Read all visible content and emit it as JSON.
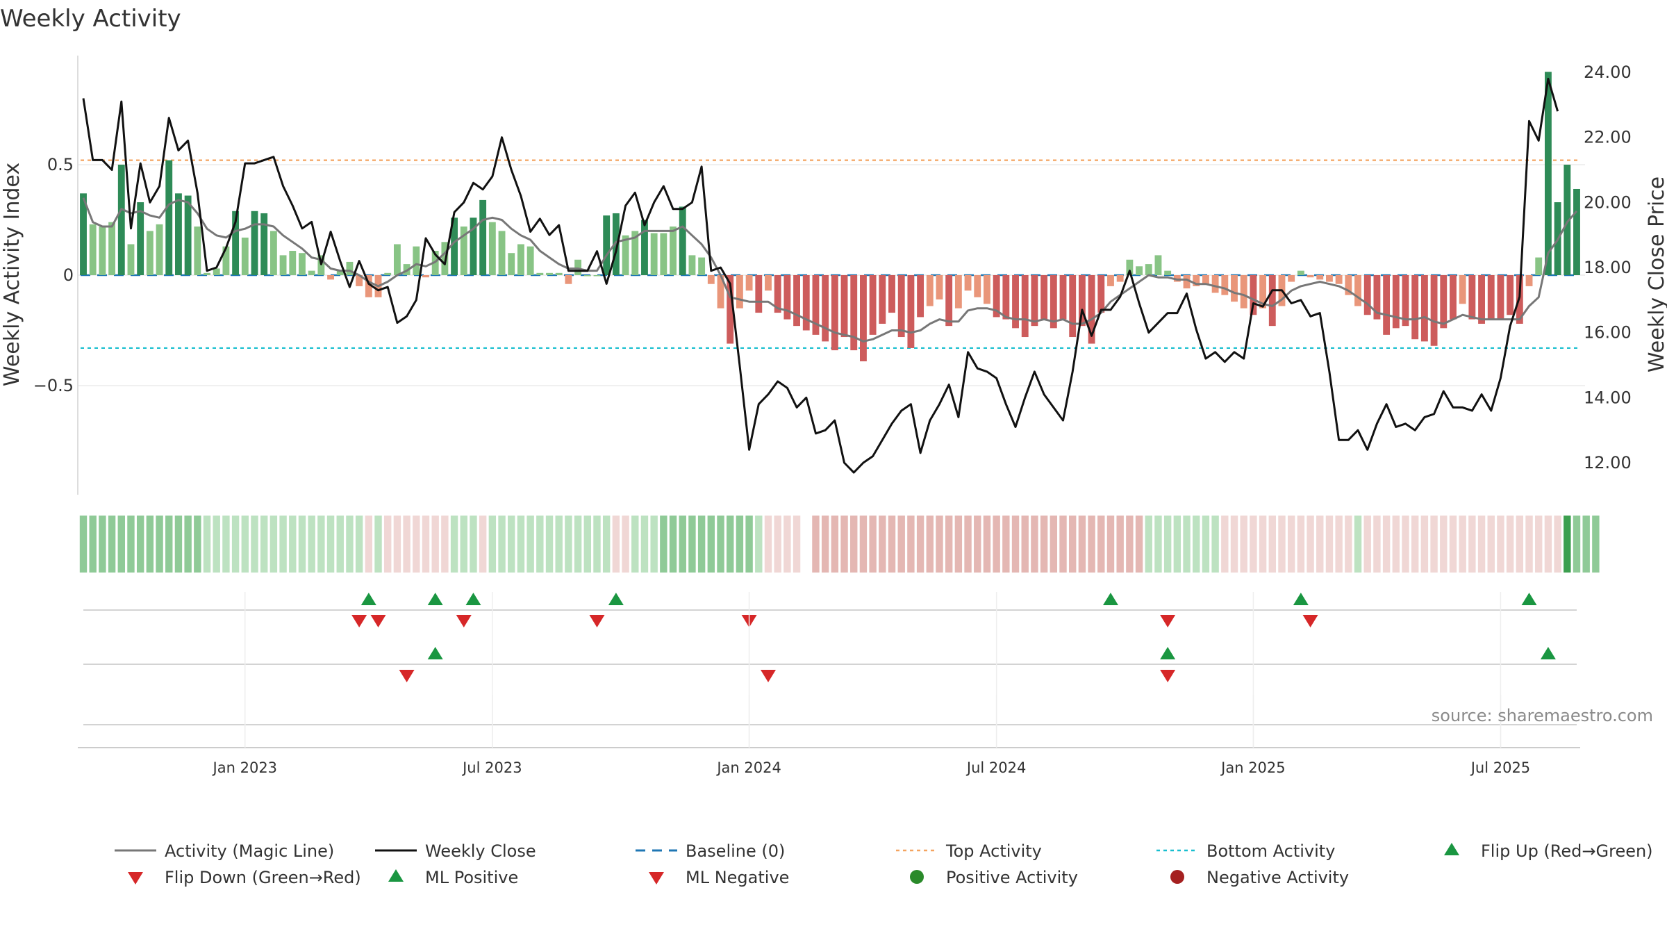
{
  "title": "Weekly Activity",
  "source": "source: sharemaestro.com",
  "colors": {
    "pos_strong": "#2e8b57",
    "pos_light": "#88c485",
    "neg_strong": "#cd5c5c",
    "neg_light": "#e9967a",
    "close_line": "#111111",
    "magic_line": "#777777",
    "baseline": "#1f77b4",
    "top_line": "#f4a460",
    "bottom_line": "#17becf",
    "flip_up": "#1a9641",
    "flip_down": "#d62728"
  },
  "chart_data": {
    "type": "bar",
    "title": "Weekly Activity",
    "ylabel_left": "Weekly Activity Index",
    "ylabel_right": "Weekly Close Price",
    "yticks_left": [
      "0.5",
      "0",
      "−0.5"
    ],
    "yticks_left_values": [
      0.5,
      0,
      -0.5
    ],
    "yticks_right": [
      "24.00",
      "22.00",
      "20.00",
      "18.00",
      "16.00",
      "14.00",
      "12.00"
    ],
    "yticks_right_values": [
      24,
      22,
      20,
      18,
      16,
      14,
      12
    ],
    "ylim_left": [
      -1.0,
      1.0
    ],
    "ylim_right": [
      10.6,
      24.2
    ],
    "x_labels": [
      "Jan 2023",
      "Jul 2023",
      "Jan 2024",
      "Jul 2024",
      "Jan 2025",
      "Jul 2025"
    ],
    "x_label_weeks": [
      17,
      43,
      70,
      96,
      123,
      149
    ],
    "top_activity": 0.52,
    "bottom_activity": -0.33,
    "activity": [
      0.37,
      0.23,
      0.22,
      0.24,
      0.5,
      0.14,
      0.33,
      0.2,
      0.23,
      0.52,
      0.37,
      0.36,
      0.22,
      0.01,
      0.03,
      0.13,
      0.29,
      0.17,
      0.29,
      0.28,
      0.2,
      0.09,
      0.11,
      0.1,
      0.02,
      0.09,
      -0.02,
      0.02,
      0.06,
      -0.05,
      -0.1,
      -0.1,
      0.01,
      0.14,
      0.05,
      0.13,
      -0.01,
      0.11,
      0.15,
      0.26,
      0.22,
      0.26,
      0.34,
      0.24,
      0.2,
      0.1,
      0.14,
      0.13,
      0.01,
      0.01,
      0.01,
      -0.04,
      0.07,
      0.0,
      0.0,
      0.27,
      0.28,
      0.18,
      0.2,
      0.25,
      0.19,
      0.19,
      0.22,
      0.31,
      0.09,
      0.08,
      -0.04,
      -0.15,
      -0.31,
      -0.15,
      -0.07,
      -0.17,
      -0.07,
      -0.17,
      -0.2,
      -0.23,
      -0.25,
      -0.27,
      -0.3,
      -0.34,
      -0.28,
      -0.34,
      -0.39,
      -0.27,
      -0.22,
      -0.17,
      -0.28,
      -0.33,
      -0.19,
      -0.14,
      -0.11,
      -0.23,
      -0.15,
      -0.07,
      -0.1,
      -0.13,
      -0.19,
      -0.2,
      -0.24,
      -0.28,
      -0.23,
      -0.2,
      -0.24,
      -0.2,
      -0.28,
      -0.23,
      -0.31,
      -0.17,
      -0.05,
      -0.03,
      0.07,
      0.04,
      0.05,
      0.09,
      0.02,
      -0.03,
      -0.06,
      -0.05,
      -0.04,
      -0.08,
      -0.09,
      -0.12,
      -0.15,
      -0.18,
      -0.15,
      -0.23,
      -0.14,
      -0.03,
      0.02,
      -0.01,
      -0.02,
      -0.03,
      -0.04,
      -0.09,
      -0.14,
      -0.18,
      -0.2,
      -0.27,
      -0.24,
      -0.23,
      -0.29,
      -0.3,
      -0.32,
      -0.24,
      -0.2,
      -0.13,
      -0.2,
      -0.22,
      -0.2,
      -0.2,
      -0.18,
      -0.22,
      -0.05,
      0.08,
      0.92,
      0.33,
      0.5,
      0.39
    ],
    "magic_line": [
      0.35,
      0.24,
      0.22,
      0.22,
      0.3,
      0.28,
      0.29,
      0.27,
      0.26,
      0.32,
      0.34,
      0.33,
      0.28,
      0.21,
      0.18,
      0.17,
      0.2,
      0.21,
      0.23,
      0.23,
      0.22,
      0.18,
      0.15,
      0.12,
      0.08,
      0.07,
      0.03,
      0.02,
      0.02,
      0.0,
      -0.03,
      -0.05,
      -0.03,
      0.0,
      0.02,
      0.05,
      0.04,
      0.06,
      0.1,
      0.15,
      0.18,
      0.21,
      0.25,
      0.26,
      0.25,
      0.21,
      0.18,
      0.16,
      0.11,
      0.08,
      0.05,
      0.03,
      0.03,
      0.02,
      0.02,
      0.09,
      0.15,
      0.16,
      0.17,
      0.2,
      0.2,
      0.2,
      0.2,
      0.22,
      0.18,
      0.14,
      0.08,
      0.0,
      -0.1,
      -0.11,
      -0.12,
      -0.12,
      -0.12,
      -0.15,
      -0.16,
      -0.18,
      -0.2,
      -0.22,
      -0.24,
      -0.26,
      -0.27,
      -0.28,
      -0.3,
      -0.29,
      -0.27,
      -0.25,
      -0.25,
      -0.26,
      -0.25,
      -0.22,
      -0.2,
      -0.21,
      -0.21,
      -0.16,
      -0.15,
      -0.15,
      -0.16,
      -0.19,
      -0.2,
      -0.2,
      -0.21,
      -0.2,
      -0.21,
      -0.2,
      -0.22,
      -0.22,
      -0.2,
      -0.17,
      -0.12,
      -0.09,
      -0.06,
      -0.03,
      0.0,
      -0.01,
      -0.01,
      -0.02,
      -0.02,
      -0.04,
      -0.04,
      -0.05,
      -0.06,
      -0.08,
      -0.09,
      -0.11,
      -0.13,
      -0.14,
      -0.11,
      -0.07,
      -0.05,
      -0.04,
      -0.03,
      -0.04,
      -0.05,
      -0.07,
      -0.1,
      -0.13,
      -0.17,
      -0.18,
      -0.19,
      -0.2,
      -0.2,
      -0.19,
      -0.21,
      -0.22,
      -0.2,
      -0.18,
      -0.19,
      -0.2,
      -0.2,
      -0.2,
      -0.2,
      -0.2,
      -0.14,
      -0.1,
      0.1,
      0.16,
      0.24,
      0.29
    ],
    "weekly_close": [
      23.2,
      21.3,
      21.3,
      21.0,
      23.1,
      19.2,
      21.2,
      20.0,
      20.5,
      22.6,
      21.6,
      21.9,
      20.3,
      17.9,
      18.0,
      18.6,
      19.4,
      21.2,
      21.2,
      21.3,
      21.4,
      20.5,
      19.9,
      19.2,
      19.4,
      18.1,
      19.1,
      18.2,
      17.4,
      18.2,
      17.5,
      17.3,
      17.4,
      16.3,
      16.5,
      17.0,
      18.9,
      18.4,
      18.1,
      19.7,
      20.0,
      20.6,
      20.4,
      20.8,
      22.0,
      21.0,
      20.2,
      19.1,
      19.5,
      19.0,
      19.3,
      17.9,
      17.9,
      17.9,
      18.5,
      17.5,
      18.5,
      19.9,
      20.3,
      19.3,
      20.0,
      20.5,
      19.8,
      19.8,
      20.0,
      21.1,
      17.9,
      18.0,
      17.5,
      15.0,
      12.4,
      13.8,
      14.1,
      14.5,
      14.3,
      13.7,
      14.0,
      12.9,
      13.0,
      13.3,
      12.0,
      11.7,
      12.0,
      12.2,
      12.7,
      13.2,
      13.6,
      13.8,
      12.3,
      13.3,
      13.8,
      14.4,
      13.4,
      15.4,
      14.9,
      14.8,
      14.6,
      13.8,
      13.1,
      14.0,
      14.8,
      14.1,
      13.7,
      13.3,
      14.8,
      16.7,
      15.9,
      16.7,
      16.7,
      17.1,
      17.9,
      16.9,
      16.0,
      16.3,
      16.6,
      16.6,
      17.2,
      16.1,
      15.2,
      15.4,
      15.1,
      15.4,
      15.2,
      16.9,
      16.8,
      17.3,
      17.3,
      16.9,
      17.0,
      16.5,
      16.6,
      14.8,
      12.7,
      12.7,
      13.0,
      12.4,
      13.2,
      13.8,
      13.1,
      13.2,
      13.0,
      13.4,
      13.5,
      14.2,
      13.7,
      13.7,
      13.6,
      14.1,
      13.6,
      14.6,
      16.2,
      17.1,
      22.5,
      21.9,
      23.8,
      22.8
    ],
    "heat_strip": [
      "p2",
      "p2",
      "p2",
      "p2",
      "p2",
      "p2",
      "p2",
      "p2",
      "p2",
      "p2",
      "p2",
      "p2",
      "p2",
      "p1",
      "p1",
      "p1",
      "p1",
      "p1",
      "p1",
      "p1",
      "p1",
      "p1",
      "p1",
      "p1",
      "p1",
      "p1",
      "p1",
      "p1",
      "p1",
      "p1",
      "n0",
      "p1",
      "n0",
      "n0",
      "n0",
      "n0",
      "n0",
      "n0",
      "n0",
      "p1",
      "p1",
      "p1",
      "n0",
      "p1",
      "p1",
      "p1",
      "p1",
      "p1",
      "p1",
      "p1",
      "p1",
      "p1",
      "p1",
      "p1",
      "p1",
      "p1",
      "n0",
      "n0",
      "p1",
      "p1",
      "p1",
      "p2",
      "p2",
      "p2",
      "p2",
      "p2",
      "p2",
      "p2",
      "p2",
      "p2",
      "p2",
      "p1",
      "n0",
      "n0",
      "n0",
      "n0",
      "gap",
      "n1",
      "n1",
      "n1",
      "n1",
      "n1",
      "n1",
      "n1",
      "n1",
      "n1",
      "n1",
      "n1",
      "n1",
      "n1",
      "n1",
      "n1",
      "n1",
      "n1",
      "n1",
      "n1",
      "n1",
      "n1",
      "n1",
      "n1",
      "n1",
      "n1",
      "n1",
      "n1",
      "n1",
      "n1",
      "n1",
      "n1",
      "n1",
      "n1",
      "n1",
      "n1",
      "p1",
      "p1",
      "p1",
      "p1",
      "p1",
      "p1",
      "p1",
      "p1",
      "n0",
      "n0",
      "n0",
      "n0",
      "n0",
      "n0",
      "n0",
      "n0",
      "n0",
      "n0",
      "n0",
      "n0",
      "n0",
      "n0",
      "p1",
      "n0",
      "n0",
      "n0",
      "n0",
      "n0",
      "n0",
      "n0",
      "n0",
      "n0",
      "n0",
      "n0",
      "n0",
      "n0",
      "n0",
      "n0",
      "n0",
      "n0",
      "n0",
      "n0",
      "n0",
      "n0",
      "p3",
      "p2",
      "p2",
      "p2"
    ],
    "flip_up_weeks": [
      30,
      37,
      41,
      56,
      108,
      128,
      152
    ],
    "flip_down_weeks": [
      29,
      31,
      40,
      54,
      70,
      114,
      129
    ],
    "ml_positive_weeks": [
      37,
      114,
      154
    ],
    "ml_negative_weeks": [
      34,
      72,
      114
    ],
    "positive_activity_weeks": [],
    "negative_activity_weeks": []
  },
  "legend": [
    {
      "label": "Activity (Magic Line)",
      "kind": "line-gray"
    },
    {
      "label": "Weekly Close",
      "kind": "line-black"
    },
    {
      "label": "Baseline (0)",
      "kind": "dash-blue"
    },
    {
      "label": "Top Activity",
      "kind": "dot-orange"
    },
    {
      "label": "Bottom Activity",
      "kind": "dot-cyan"
    },
    {
      "label": "Flip Up (Red→Green)",
      "kind": "tri-up-green"
    },
    {
      "label": "Flip Down (Green→Red)",
      "kind": "tri-down-red"
    },
    {
      "label": "ML Positive",
      "kind": "tri-up-green"
    },
    {
      "label": "ML Negative",
      "kind": "tri-down-red"
    },
    {
      "label": "Positive Activity",
      "kind": "circle-green"
    },
    {
      "label": "Negative Activity",
      "kind": "circle-red"
    }
  ]
}
